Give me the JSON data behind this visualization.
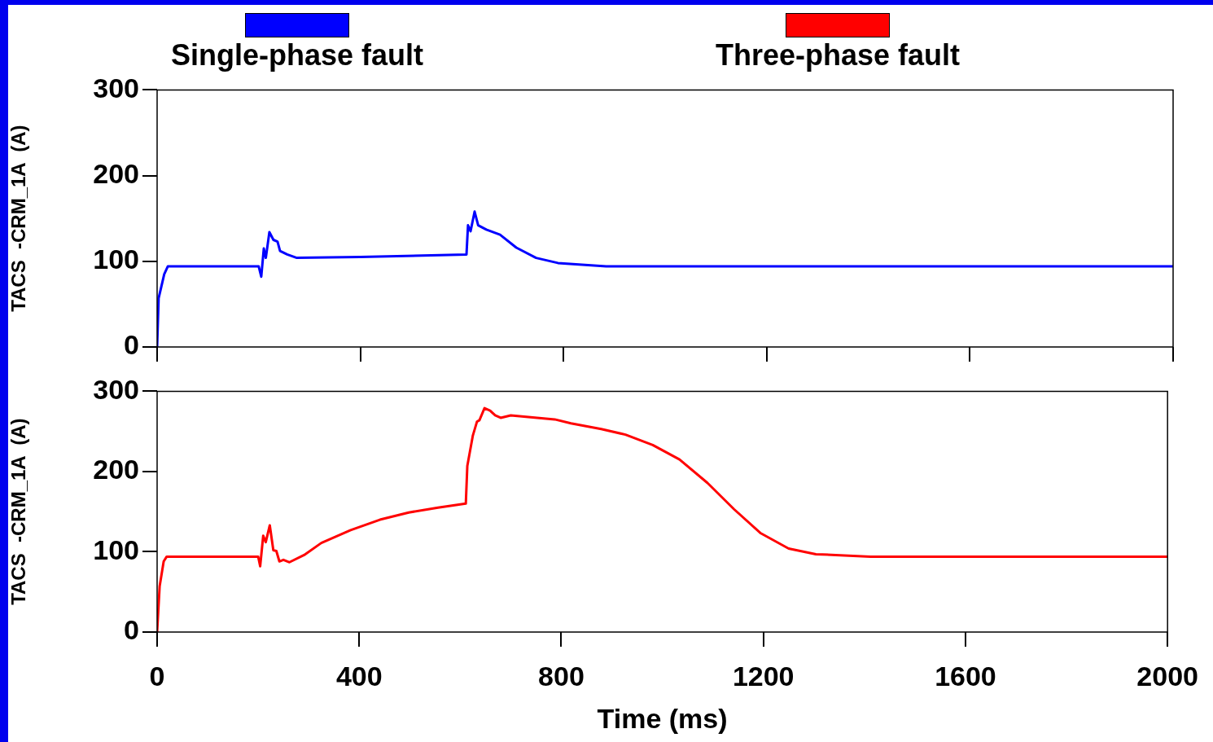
{
  "chart_data": [
    {
      "type": "line",
      "ylabel": "TACS  -CRM_1A  (A)",
      "xlim": [
        0,
        2000
      ],
      "xticks": [
        0,
        400,
        800,
        1200,
        1600,
        2000
      ],
      "ylim": [
        0,
        300
      ],
      "yticks": [
        0,
        100,
        200,
        300
      ],
      "tick_labels": "y",
      "grid": false,
      "legend": "top",
      "marker": "none",
      "line_style": "solid",
      "series": [
        {
          "name": "Single-phase fault",
          "color": "#0000ff",
          "x": [
            0,
            3,
            14,
            21,
            200,
            205,
            210,
            214,
            221,
            229,
            237,
            242,
            256,
            275,
            400,
            609,
            612,
            617,
            625,
            632,
            648,
            675,
            707,
            746,
            789,
            884,
            2000
          ],
          "values": [
            0,
            57,
            85,
            94,
            94,
            82,
            115,
            104,
            134,
            125,
            123,
            112,
            108,
            104,
            105,
            108,
            142,
            135,
            158,
            142,
            137,
            131,
            116,
            104,
            98,
            94,
            94
          ]
        }
      ]
    },
    {
      "type": "line",
      "xlabel": "Time (ms)",
      "ylabel": "TACS  -CRM_1A  (A)",
      "xlim": [
        0,
        2000
      ],
      "xticks": [
        0,
        400,
        800,
        1200,
        1600,
        2000
      ],
      "ylim": [
        0,
        300
      ],
      "yticks": [
        0,
        100,
        200,
        300
      ],
      "grid": false,
      "legend": "top",
      "marker": "none",
      "line_style": "solid",
      "series": [
        {
          "name": "Three-phase fault",
          "color": "#ff0000",
          "x": [
            0,
            5,
            13,
            19,
            200,
            204,
            210,
            215,
            223,
            230,
            236,
            242,
            250,
            262,
            291,
            325,
            383,
            441,
            498,
            556,
            611,
            614,
            625,
            633,
            638,
            648,
            659,
            669,
            680,
            700,
            787,
            819,
            879,
            927,
            981,
            1034,
            1089,
            1142,
            1195,
            1250,
            1304,
            1412,
            2000
          ],
          "values": [
            0,
            57,
            88,
            94,
            94,
            82,
            120,
            112,
            133,
            102,
            101,
            88,
            90,
            87,
            96,
            111,
            127,
            140,
            149,
            155,
            160,
            207,
            245,
            262,
            264,
            279,
            276,
            270,
            267,
            270,
            265,
            260,
            253,
            246,
            233,
            215,
            186,
            153,
            123,
            104,
            97,
            94,
            94
          ]
        }
      ]
    }
  ]
}
